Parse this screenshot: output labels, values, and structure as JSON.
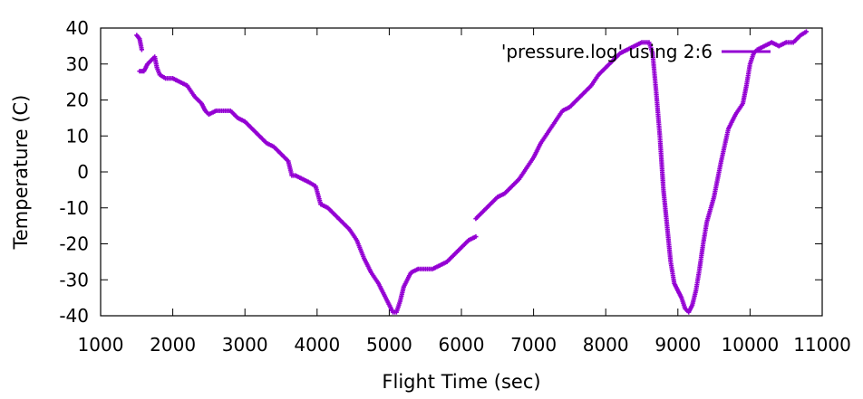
{
  "chart_data": {
    "type": "scatter",
    "title": "",
    "xlabel": "Flight Time (sec)",
    "ylabel": "Temperature (C)",
    "xlim": [
      1000,
      11000
    ],
    "ylim": [
      -40,
      40
    ],
    "xticks": [
      1000,
      2000,
      3000,
      4000,
      5000,
      6000,
      7000,
      8000,
      9000,
      10000,
      11000
    ],
    "yticks": [
      -40,
      -30,
      -20,
      -10,
      0,
      10,
      20,
      30,
      40
    ],
    "grid": false,
    "legend_position": "top-right",
    "series": [
      {
        "name": "'pressure.log' using 2:6",
        "color": "#9400d3",
        "marker": "plus",
        "segments": [
          [
            [
              1500,
              38
            ],
            [
              1540,
              37
            ],
            [
              1570,
              34
            ]
          ],
          [
            [
              1540,
              28
            ],
            [
              1600,
              28
            ],
            [
              1650,
              30
            ],
            [
              1700,
              31
            ],
            [
              1750,
              32
            ],
            [
              1780,
              29
            ],
            [
              1820,
              27
            ],
            [
              1900,
              26
            ],
            [
              2000,
              26
            ],
            [
              2100,
              25
            ],
            [
              2200,
              24
            ],
            [
              2300,
              21
            ],
            [
              2400,
              19
            ],
            [
              2450,
              17
            ],
            [
              2500,
              16
            ],
            [
              2600,
              17
            ],
            [
              2700,
              17
            ],
            [
              2800,
              17
            ],
            [
              2900,
              15
            ],
            [
              3000,
              14
            ],
            [
              3100,
              12
            ],
            [
              3200,
              10
            ],
            [
              3300,
              8
            ],
            [
              3400,
              7
            ],
            [
              3500,
              5
            ],
            [
              3600,
              3
            ],
            [
              3650,
              -1
            ],
            [
              3700,
              -1
            ],
            [
              3800,
              -2
            ],
            [
              3900,
              -3
            ],
            [
              3980,
              -4
            ],
            [
              4050,
              -9
            ],
            [
              4150,
              -10
            ],
            [
              4250,
              -12
            ],
            [
              4350,
              -14
            ],
            [
              4450,
              -16
            ],
            [
              4550,
              -19
            ],
            [
              4650,
              -24
            ],
            [
              4750,
              -28
            ],
            [
              4850,
              -31
            ],
            [
              4950,
              -35
            ],
            [
              5050,
              -39
            ],
            [
              5100,
              -39
            ],
            [
              5150,
              -36
            ],
            [
              5200,
              -32
            ],
            [
              5300,
              -28
            ],
            [
              5400,
              -27
            ],
            [
              5500,
              -27
            ],
            [
              5600,
              -27
            ],
            [
              5700,
              -26
            ],
            [
              5800,
              -25
            ],
            [
              5900,
              -23
            ],
            [
              6000,
              -21
            ],
            [
              6100,
              -19
            ],
            [
              6200,
              -18
            ]
          ]
        ],
        "segments_b": [
          [
            [
              6200,
              -13
            ],
            [
              6300,
              -11
            ],
            [
              6400,
              -9
            ],
            [
              6500,
              -7
            ],
            [
              6600,
              -6
            ],
            [
              6700,
              -4
            ],
            [
              6800,
              -2
            ],
            [
              6900,
              1
            ],
            [
              7000,
              4
            ],
            [
              7100,
              8
            ],
            [
              7200,
              11
            ],
            [
              7300,
              14
            ],
            [
              7400,
              17
            ],
            [
              7500,
              18
            ],
            [
              7600,
              20
            ],
            [
              7700,
              22
            ],
            [
              7800,
              24
            ],
            [
              7900,
              27
            ],
            [
              8000,
              29
            ],
            [
              8100,
              31
            ],
            [
              8200,
              33
            ],
            [
              8300,
              34
            ],
            [
              8400,
              35
            ],
            [
              8500,
              36
            ],
            [
              8600,
              36
            ],
            [
              8650,
              33
            ],
            [
              8700,
              22
            ],
            [
              8750,
              10
            ],
            [
              8800,
              -5
            ],
            [
              8850,
              -15
            ],
            [
              8900,
              -25
            ],
            [
              8950,
              -31
            ],
            [
              9000,
              -33
            ],
            [
              9050,
              -35
            ],
            [
              9100,
              -38
            ],
            [
              9150,
              -39
            ],
            [
              9200,
              -37
            ],
            [
              9250,
              -33
            ],
            [
              9300,
              -27
            ],
            [
              9350,
              -20
            ],
            [
              9400,
              -14
            ],
            [
              9500,
              -7
            ],
            [
              9600,
              3
            ],
            [
              9700,
              12
            ],
            [
              9800,
              16
            ],
            [
              9900,
              19
            ],
            [
              9950,
              24
            ],
            [
              10000,
              30
            ],
            [
              10050,
              33
            ],
            [
              10100,
              34
            ],
            [
              10200,
              35
            ],
            [
              10300,
              36
            ],
            [
              10400,
              35
            ],
            [
              10500,
              36
            ],
            [
              10600,
              36
            ],
            [
              10700,
              38
            ],
            [
              10780,
              39
            ]
          ]
        ]
      }
    ]
  }
}
